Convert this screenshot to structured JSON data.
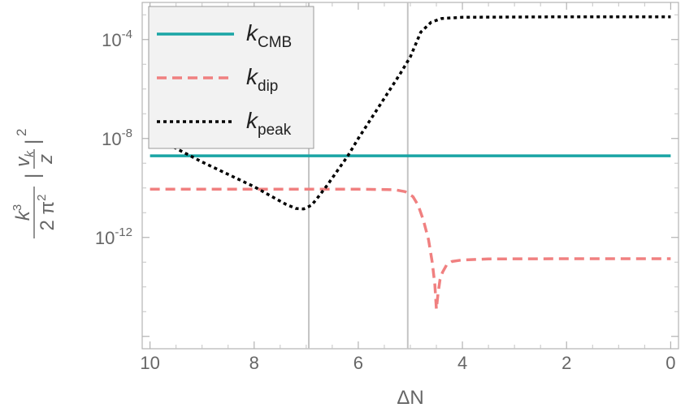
{
  "chart_data": {
    "type": "line",
    "xlabel": "ΔN",
    "ylabel": {
      "numerator_prefix": "k",
      "numerator_prefix_sup": "3",
      "denominator": "2 π",
      "denominator_sup": "2",
      "abs_open": "|",
      "frac_num": "v",
      "frac_num_sub": "k",
      "frac_den": "z",
      "abs_close": "|",
      "power": "2"
    },
    "xlim": [
      10.15,
      -0.15
    ],
    "x_reversed": true,
    "y_scale": "log10",
    "ylim_log10": [
      -16.5,
      -2.5
    ],
    "x_ticks": [
      10,
      8,
      6,
      4,
      2,
      0
    ],
    "x_tick_labels": [
      "10",
      "8",
      "6",
      "4",
      "2",
      "0"
    ],
    "y_ticks": [
      {
        "exp": -4,
        "base": "10",
        "power": "-4"
      },
      {
        "exp": -8,
        "base": "10",
        "power": "-8"
      },
      {
        "exp": -12,
        "base": "10",
        "power": "-12"
      }
    ],
    "vlines": [
      6.95,
      5.05
    ],
    "grid": false,
    "legend_position": "top-left",
    "series": [
      {
        "name": "k",
        "name_sub": "CMB",
        "color": "#1aa5a5",
        "dash": "solid",
        "points": [
          [
            10,
            -8.7
          ],
          [
            0,
            -8.7
          ]
        ]
      },
      {
        "name": "k",
        "name_sub": "dip",
        "color": "#f08080",
        "dash": "dashed",
        "points": [
          [
            10,
            -10.05
          ],
          [
            7.5,
            -10.05
          ],
          [
            6.0,
            -10.05
          ],
          [
            5.3,
            -10.07
          ],
          [
            5.1,
            -10.15
          ],
          [
            4.95,
            -10.35
          ],
          [
            4.85,
            -10.7
          ],
          [
            4.75,
            -11.3
          ],
          [
            4.65,
            -12.1
          ],
          [
            4.58,
            -13.0
          ],
          [
            4.53,
            -13.9
          ],
          [
            4.5,
            -14.9
          ],
          [
            4.47,
            -14.3
          ],
          [
            4.43,
            -13.7
          ],
          [
            4.38,
            -13.4
          ],
          [
            4.3,
            -13.1
          ],
          [
            4.2,
            -12.97
          ],
          [
            4.0,
            -12.91
          ],
          [
            3.5,
            -12.87
          ],
          [
            2.0,
            -12.86
          ],
          [
            0,
            -12.86
          ]
        ]
      },
      {
        "name": "k",
        "name_sub": "peak",
        "color": "#000000",
        "dash": "dotted",
        "points": [
          [
            10,
            -7.9
          ],
          [
            9.5,
            -8.4
          ],
          [
            9.0,
            -8.95
          ],
          [
            8.5,
            -9.45
          ],
          [
            8.0,
            -9.95
          ],
          [
            7.7,
            -10.3
          ],
          [
            7.4,
            -10.65
          ],
          [
            7.2,
            -10.83
          ],
          [
            7.05,
            -10.85
          ],
          [
            6.9,
            -10.7
          ],
          [
            6.8,
            -10.45
          ],
          [
            6.6,
            -9.9
          ],
          [
            6.4,
            -9.3
          ],
          [
            6.2,
            -8.7
          ],
          [
            6.0,
            -8.0
          ],
          [
            5.6,
            -6.7
          ],
          [
            5.2,
            -5.4
          ],
          [
            5.0,
            -4.7
          ],
          [
            4.8,
            -3.7
          ],
          [
            4.6,
            -3.3
          ],
          [
            4.4,
            -3.15
          ],
          [
            4.0,
            -3.1
          ],
          [
            2.0,
            -3.08
          ],
          [
            0,
            -3.08
          ]
        ]
      }
    ]
  }
}
